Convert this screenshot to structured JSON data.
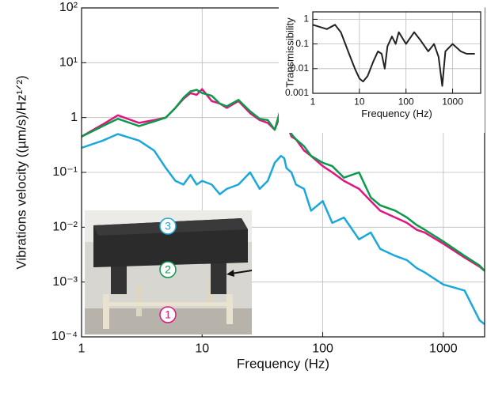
{
  "chart_data": [
    {
      "type": "line",
      "xlabel": "Frequency (Hz)",
      "ylabel": "Vibrations velocity ((µm/s)/Hz¹ᐟ²)",
      "log_x": true,
      "log_y": true,
      "grid": true,
      "xlim": [
        1,
        2200
      ],
      "ylim": [
        0.0001,
        100
      ],
      "xticks": [
        1,
        10,
        100,
        1000
      ],
      "yticks": [
        {
          "value": 0.0001,
          "label": "10⁻⁴"
        },
        {
          "value": 0.001,
          "label": "10⁻³"
        },
        {
          "value": 0.01,
          "label": "10⁻²"
        },
        {
          "value": 0.1,
          "label": "10⁻¹"
        },
        1,
        {
          "value": 10,
          "label": "10¹"
        },
        {
          "value": 100,
          "label": "10²"
        }
      ],
      "x": [
        1,
        1.5,
        2,
        3,
        4,
        5,
        6,
        7,
        8,
        9,
        10,
        12,
        14,
        16,
        20,
        25,
        30,
        35,
        40,
        45,
        48,
        50,
        55,
        60,
        70,
        80,
        100,
        120,
        150,
        200,
        250,
        300,
        400,
        500,
        600,
        700,
        1000,
        1500,
        2000,
        2200
      ],
      "series": [
        {
          "color": "#e0157f",
          "values": [
            0.45,
            0.75,
            1.1,
            0.8,
            0.9,
            1.0,
            1.5,
            2.2,
            2.8,
            2.6,
            3.3,
            2.0,
            1.8,
            1.5,
            2.0,
            1.2,
            0.9,
            0.8,
            0.6,
            1.2,
            2.0,
            0.8,
            0.45,
            0.4,
            0.25,
            0.2,
            0.13,
            0.1,
            0.07,
            0.05,
            0.03,
            0.02,
            0.015,
            0.012,
            0.009,
            0.008,
            0.005,
            0.0028,
            0.0019,
            0.0016
          ]
        },
        {
          "color": "#0a9a4a",
          "values": [
            0.45,
            0.7,
            0.95,
            0.7,
            0.85,
            1.0,
            1.5,
            2.3,
            3.0,
            3.2,
            2.8,
            2.5,
            1.8,
            1.6,
            2.1,
            1.3,
            0.95,
            0.9,
            0.6,
            1.5,
            2.2,
            0.9,
            0.5,
            0.4,
            0.3,
            0.2,
            0.15,
            0.13,
            0.08,
            0.1,
            0.035,
            0.025,
            0.02,
            0.015,
            0.011,
            0.009,
            0.0055,
            0.003,
            0.002,
            0.0016
          ]
        },
        {
          "color": "#1aa7dc",
          "values": [
            0.28,
            0.38,
            0.5,
            0.38,
            0.25,
            0.12,
            0.07,
            0.06,
            0.09,
            0.06,
            0.07,
            0.06,
            0.04,
            0.05,
            0.06,
            0.1,
            0.05,
            0.07,
            0.15,
            0.2,
            0.18,
            0.12,
            0.1,
            0.06,
            0.05,
            0.02,
            0.03,
            0.012,
            0.015,
            0.006,
            0.008,
            0.004,
            0.003,
            0.0025,
            0.0018,
            0.0015,
            0.0009,
            0.0007,
            0.0002,
            0.00017
          ]
        }
      ],
      "annotations": [
        "3",
        "2",
        "1"
      ]
    },
    {
      "type": "line",
      "xlabel": "Frequency (Hz)",
      "ylabel": "Transmissibility",
      "log_x": true,
      "log_y": true,
      "grid": true,
      "xlim": [
        1,
        4000
      ],
      "ylim": [
        0.001,
        2
      ],
      "xticks": [
        1,
        10,
        100,
        1000
      ],
      "yticks": [
        0.001,
        0.01,
        0.1,
        1
      ],
      "x": [
        1,
        2,
        3,
        4,
        5,
        6,
        8,
        10,
        12,
        15,
        20,
        25,
        30,
        35,
        40,
        50,
        60,
        70,
        80,
        100,
        150,
        200,
        300,
        400,
        500,
        600,
        700,
        1000,
        1500,
        2000,
        3000
      ],
      "series": [
        {
          "color": "#222222",
          "values": [
            0.6,
            0.4,
            0.6,
            0.3,
            0.1,
            0.04,
            0.01,
            0.004,
            0.003,
            0.005,
            0.02,
            0.05,
            0.04,
            0.01,
            0.08,
            0.2,
            0.1,
            0.3,
            0.2,
            0.1,
            0.3,
            0.15,
            0.05,
            0.1,
            0.03,
            0.002,
            0.05,
            0.1,
            0.05,
            0.04,
            0.04
          ]
        }
      ]
    }
  ]
}
